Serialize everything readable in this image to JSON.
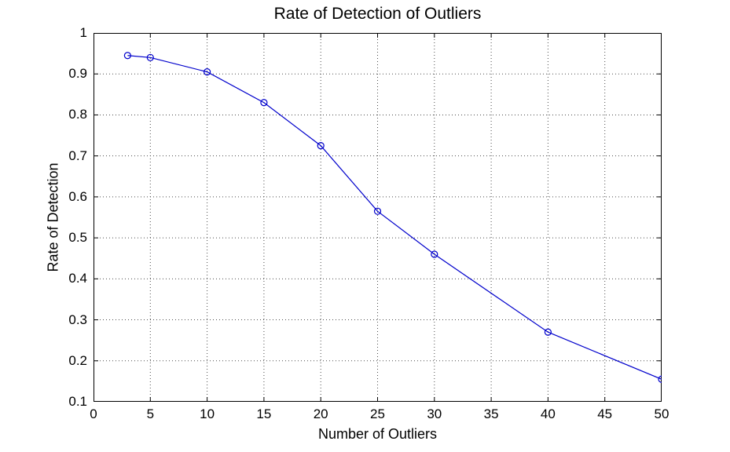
{
  "figure": {
    "background": "#ffffff"
  },
  "chart_data": {
    "type": "line",
    "title": "Rate of Detection of Outliers",
    "xlabel": "Number of Outliers",
    "ylabel": "Rate of Detection",
    "x": [
      3,
      5,
      10,
      15,
      20,
      25,
      30,
      40,
      50
    ],
    "y": [
      0.945,
      0.94,
      0.905,
      0.83,
      0.725,
      0.565,
      0.46,
      0.27,
      0.155
    ],
    "xlim": [
      0,
      50
    ],
    "ylim": [
      0.1,
      1
    ],
    "xticks": [
      0,
      5,
      10,
      15,
      20,
      25,
      30,
      35,
      40,
      45,
      50
    ],
    "yticks": [
      0.1,
      0.2,
      0.3,
      0.4,
      0.5,
      0.6,
      0.7,
      0.8,
      0.9,
      1
    ],
    "grid": "dotted",
    "legend": "none",
    "line_color": "#0000CC",
    "marker": "open-circle",
    "marker_radius": 4,
    "axis_color": "#000000",
    "grid_color": "#4a4a4a"
  }
}
